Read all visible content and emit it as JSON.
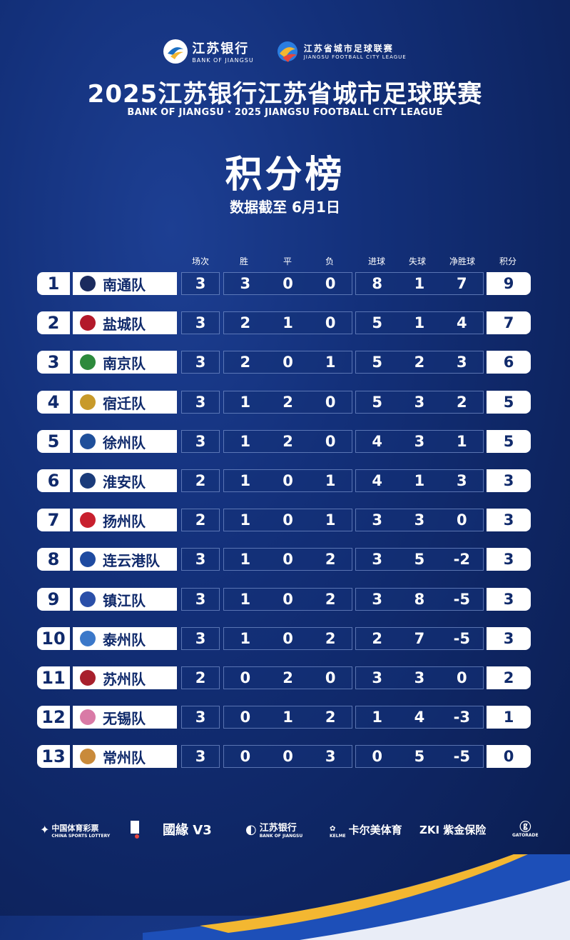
{
  "header": {
    "bank_logo_cn": "江苏银行",
    "bank_logo_en": "BANK OF JIANGSU",
    "league_logo_cn": "江苏省城市足球联赛",
    "league_logo_en": "JIANGSU FOOTBALL CITY LEAGUE",
    "title": "2025江苏银行江苏省城市足球联赛",
    "subtitle_en": "BANK OF JIANGSU · 2025 JIANGSU FOOTBALL CITY LEAGUE",
    "big_title": "积分榜",
    "date_note": "数据截至 6月1日"
  },
  "columns": {
    "played": "场次",
    "won": "胜",
    "drawn": "平",
    "lost": "负",
    "goals_for": "进球",
    "goals_against": "失球",
    "goal_diff": "净胜球",
    "points": "积分"
  },
  "colors": {
    "background": "#13307a",
    "panel_white": "#ffffff",
    "text_navy": "#102a6b",
    "accent_gold": "#f3b731"
  },
  "standings": [
    {
      "rank": "1",
      "team": "南通队",
      "badge_color": "#1b2b5e",
      "played": "3",
      "won": "3",
      "drawn": "0",
      "lost": "0",
      "gf": "8",
      "ga": "1",
      "gd": "7",
      "pts": "9"
    },
    {
      "rank": "2",
      "team": "盐城队",
      "badge_color": "#b3192a",
      "played": "3",
      "won": "2",
      "drawn": "1",
      "lost": "0",
      "gf": "5",
      "ga": "1",
      "gd": "4",
      "pts": "7"
    },
    {
      "rank": "3",
      "team": "南京队",
      "badge_color": "#2d8a3c",
      "played": "3",
      "won": "2",
      "drawn": "0",
      "lost": "1",
      "gf": "5",
      "ga": "2",
      "gd": "3",
      "pts": "6"
    },
    {
      "rank": "4",
      "team": "宿迁队",
      "badge_color": "#c89a2a",
      "played": "3",
      "won": "1",
      "drawn": "2",
      "lost": "0",
      "gf": "5",
      "ga": "3",
      "gd": "2",
      "pts": "5"
    },
    {
      "rank": "5",
      "team": "徐州队",
      "badge_color": "#1f4f9a",
      "played": "3",
      "won": "1",
      "drawn": "2",
      "lost": "0",
      "gf": "4",
      "ga": "3",
      "gd": "1",
      "pts": "5"
    },
    {
      "rank": "6",
      "team": "淮安队",
      "badge_color": "#1a3b7a",
      "played": "2",
      "won": "1",
      "drawn": "0",
      "lost": "1",
      "gf": "4",
      "ga": "1",
      "gd": "3",
      "pts": "3"
    },
    {
      "rank": "7",
      "team": "扬州队",
      "badge_color": "#c8202e",
      "played": "2",
      "won": "1",
      "drawn": "0",
      "lost": "1",
      "gf": "3",
      "ga": "3",
      "gd": "0",
      "pts": "3"
    },
    {
      "rank": "8",
      "team": "连云港队",
      "badge_color": "#1e4aa0",
      "played": "3",
      "won": "1",
      "drawn": "0",
      "lost": "2",
      "gf": "3",
      "ga": "5",
      "gd": "-2",
      "pts": "3"
    },
    {
      "rank": "9",
      "team": "镇江队",
      "badge_color": "#2a4fa8",
      "played": "3",
      "won": "1",
      "drawn": "0",
      "lost": "2",
      "gf": "3",
      "ga": "8",
      "gd": "-5",
      "pts": "3"
    },
    {
      "rank": "10",
      "team": "泰州队",
      "badge_color": "#3b78c9",
      "played": "3",
      "won": "1",
      "drawn": "0",
      "lost": "2",
      "gf": "2",
      "ga": "7",
      "gd": "-5",
      "pts": "3"
    },
    {
      "rank": "11",
      "team": "苏州队",
      "badge_color": "#a8202c",
      "played": "2",
      "won": "0",
      "drawn": "2",
      "lost": "0",
      "gf": "3",
      "ga": "3",
      "gd": "0",
      "pts": "2"
    },
    {
      "rank": "12",
      "team": "无锡队",
      "badge_color": "#d97aa6",
      "played": "3",
      "won": "0",
      "drawn": "1",
      "lost": "2",
      "gf": "1",
      "ga": "4",
      "gd": "-3",
      "pts": "1"
    },
    {
      "rank": "13",
      "team": "常州队",
      "badge_color": "#c98a3a",
      "played": "3",
      "won": "0",
      "drawn": "0",
      "lost": "3",
      "gf": "0",
      "ga": "5",
      "gd": "-5",
      "pts": "0"
    }
  ],
  "sponsors": {
    "lottery_cn": "中国体育彩票",
    "lottery_en": "CHINA SPORTS LOTTERY",
    "guoyuan": "國緣 V3",
    "bank_cn": "江苏银行",
    "bank_en": "BANK OF JIANGSU",
    "kelme": "卡尔美体育",
    "kelme_small": "KELME",
    "zki": "ZKI 紫金保险",
    "gatorade": "GATORADE"
  }
}
